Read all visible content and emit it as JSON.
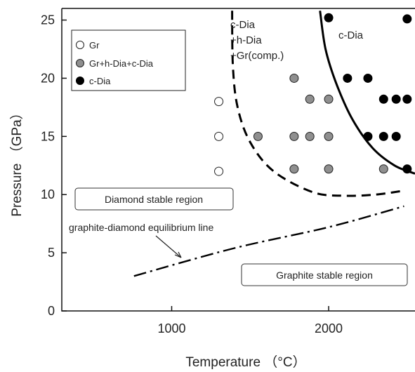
{
  "chart_data": {
    "type": "scatter",
    "xlabel": "Temperature （°C）",
    "ylabel": "Pressure （GPa）",
    "xlim": [
      300,
      2550
    ],
    "ylim": [
      0,
      26
    ],
    "x_ticks": [
      "1000",
      "2000"
    ],
    "x_tick_values": [
      1000,
      2000
    ],
    "y_ticks": [
      "0",
      "5",
      "10",
      "15",
      "20",
      "25"
    ],
    "y_tick_values": [
      0,
      5,
      10,
      15,
      20,
      25
    ],
    "legend": [
      {
        "label": "Gr",
        "marker": "open-circle"
      },
      {
        "label": "Gr+h-Dia+c-Dia",
        "marker": "gray-circle"
      },
      {
        "label": "c-Dia",
        "marker": "black-circle"
      }
    ],
    "series": [
      {
        "name": "Gr",
        "fill": "#ffffff",
        "points": [
          [
            1300,
            18
          ],
          [
            1300,
            15
          ],
          [
            1300,
            12
          ]
        ]
      },
      {
        "name": "Gr+h-Dia+c-Dia",
        "fill": "#8f8f8f",
        "points": [
          [
            1780,
            20
          ],
          [
            1880,
            18.2
          ],
          [
            2000,
            18.2
          ],
          [
            1550,
            15
          ],
          [
            1780,
            15
          ],
          [
            1880,
            15
          ],
          [
            2000,
            15
          ],
          [
            1780,
            12.2
          ],
          [
            2000,
            12.2
          ],
          [
            2350,
            12.2
          ]
        ]
      },
      {
        "name": "c-Dia",
        "fill": "#000000",
        "points": [
          [
            2000,
            25.2
          ],
          [
            2500,
            25.1
          ],
          [
            2120,
            20
          ],
          [
            2250,
            20
          ],
          [
            2350,
            18.2
          ],
          [
            2430,
            18.2
          ],
          [
            2500,
            18.2
          ],
          [
            2250,
            15
          ],
          [
            2350,
            15
          ],
          [
            2430,
            15
          ],
          [
            2500,
            12.2
          ]
        ]
      }
    ],
    "lines": [
      {
        "name": "dashed-boundary",
        "style": "dashed",
        "points": [
          [
            1385,
            25.8
          ],
          [
            1390,
            21
          ],
          [
            1420,
            17.5
          ],
          [
            1500,
            14.5
          ],
          [
            1650,
            12
          ],
          [
            1900,
            10.2
          ],
          [
            2100,
            9.9
          ],
          [
            2300,
            10
          ],
          [
            2460,
            10.3
          ]
        ]
      },
      {
        "name": "solid-boundary",
        "style": "solid",
        "points": [
          [
            1945,
            25.8
          ],
          [
            1980,
            22.5
          ],
          [
            2050,
            19.5
          ],
          [
            2150,
            16.5
          ],
          [
            2280,
            14
          ],
          [
            2420,
            12.5
          ],
          [
            2550,
            11.8
          ]
        ]
      },
      {
        "name": "graphite-diamond-equilibrium",
        "style": "dash-dot",
        "points": [
          [
            760,
            3
          ],
          [
            1400,
            5.4
          ],
          [
            2000,
            7.2
          ],
          [
            2480,
            9
          ]
        ]
      }
    ],
    "annotations": {
      "cdia_mixed_line1": "c-Dia",
      "cdia_mixed_line2": "+h-Dia",
      "cdia_mixed_line3": "+Gr(comp.)",
      "cdia_region": "c-Dia",
      "equilibrium_label": "graphite-diamond equilibrium line",
      "diamond_region": "Diamond stable region",
      "graphite_region": "Graphite stable region"
    }
  }
}
